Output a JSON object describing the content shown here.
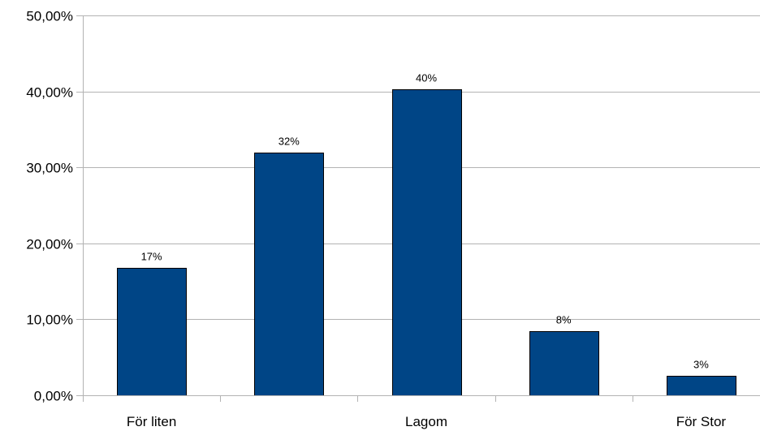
{
  "chart_data": {
    "type": "bar",
    "title": "",
    "xlabel": "",
    "ylabel": "",
    "categories": [
      "För liten",
      "",
      "Lagom",
      "",
      "För Stor"
    ],
    "values": [
      16.8,
      31.9,
      40.3,
      8.4,
      2.6
    ],
    "data_labels": [
      "17%",
      "32%",
      "40%",
      "8%",
      "3%"
    ],
    "ylim": [
      0,
      50
    ],
    "y_ticks": [
      0,
      10,
      20,
      30,
      40,
      50
    ],
    "y_tick_labels": [
      "0,00%",
      "10,00%",
      "20,00%",
      "30,00%",
      "40,00%",
      "50,00%"
    ],
    "grid": true,
    "legend": "none",
    "bar_color": "#004586"
  }
}
